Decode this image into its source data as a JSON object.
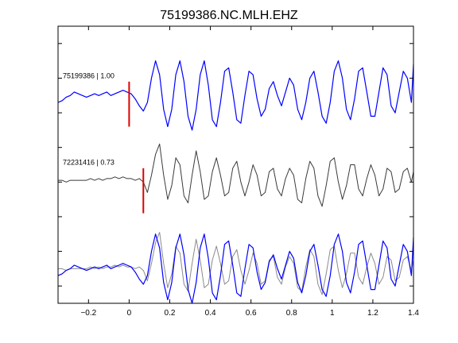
{
  "chart_data": {
    "type": "line",
    "title": "75199386.NC.MLH.EHZ",
    "xlabel": "",
    "ylabel": "",
    "xlim": [
      -0.35,
      1.4
    ],
    "ylim": [
      0,
      8
    ],
    "grid": false,
    "xticks": [
      -0.2,
      0,
      0.2,
      0.4,
      0.6,
      0.8,
      1,
      1.2,
      1.4
    ],
    "xtick_labels": [
      "−0.2",
      "0",
      "0.2",
      "0.4",
      "0.6",
      "0.8",
      "1",
      "1.2",
      "1.4"
    ],
    "yticks": [
      0.5,
      1.5,
      2.5,
      3.5,
      4.5,
      5.5,
      6.5,
      7.5
    ],
    "colors": {
      "primary": "#0000ff",
      "secondary": "#3a3a3a",
      "secondary_overlay": "#8a8a8a",
      "pick": "#e00000"
    },
    "panels": [
      {
        "label": "75199386 | 1.00",
        "offset": 6.0,
        "pick_time": 0.0,
        "pick_span": [
          5.1,
          6.4
        ],
        "traces": [
          "blue"
        ]
      },
      {
        "label": "72231416 | 0.73",
        "offset": 3.5,
        "pick_time": 0.07,
        "pick_span": [
          2.6,
          3.9
        ],
        "traces": [
          "gray"
        ]
      },
      {
        "label": "",
        "offset": 1.0,
        "traces": [
          "blue",
          "gray_overlay"
        ]
      }
    ],
    "series": [
      {
        "id": "blue",
        "time": [
          -0.35,
          -0.33,
          -0.31,
          -0.29,
          -0.27,
          -0.25,
          -0.23,
          -0.21,
          -0.19,
          -0.17,
          -0.15,
          -0.13,
          -0.11,
          -0.09,
          -0.07,
          -0.05,
          -0.03,
          -0.01,
          0.01,
          0.03,
          0.05,
          0.07,
          0.09,
          0.11,
          0.13,
          0.15,
          0.17,
          0.19,
          0.21,
          0.23,
          0.25,
          0.27,
          0.29,
          0.31,
          0.33,
          0.35,
          0.37,
          0.39,
          0.41,
          0.43,
          0.45,
          0.47,
          0.49,
          0.51,
          0.53,
          0.55,
          0.57,
          0.59,
          0.61,
          0.63,
          0.65,
          0.67,
          0.69,
          0.71,
          0.73,
          0.75,
          0.77,
          0.79,
          0.81,
          0.83,
          0.85,
          0.87,
          0.89,
          0.91,
          0.93,
          0.95,
          0.97,
          0.99,
          1.01,
          1.03,
          1.05,
          1.07,
          1.09,
          1.11,
          1.13,
          1.15,
          1.17,
          1.19,
          1.21,
          1.23,
          1.25,
          1.27,
          1.29,
          1.31,
          1.33,
          1.35,
          1.37,
          1.39,
          1.4
        ],
        "values": [
          -0.2,
          -0.15,
          -0.05,
          0.0,
          0.1,
          0.05,
          0.0,
          -0.05,
          0.0,
          0.05,
          0.0,
          0.05,
          0.1,
          0.0,
          0.05,
          0.1,
          0.15,
          0.1,
          0.05,
          -0.1,
          -0.3,
          -0.45,
          -0.2,
          0.5,
          1.0,
          0.6,
          -0.4,
          -0.9,
          -0.4,
          0.6,
          1.0,
          0.4,
          -0.6,
          -1.0,
          -0.4,
          0.6,
          1.0,
          0.3,
          -0.7,
          -0.9,
          -0.2,
          0.7,
          0.8,
          0.1,
          -0.7,
          -0.8,
          0.0,
          0.7,
          0.6,
          -0.1,
          -0.6,
          -0.4,
          0.2,
          0.4,
          0.0,
          -0.3,
          0.1,
          0.5,
          0.3,
          -0.4,
          -0.7,
          -0.2,
          0.5,
          0.7,
          0.1,
          -0.6,
          -0.8,
          -0.2,
          0.7,
          1.0,
          0.5,
          -0.4,
          -0.7,
          -0.1,
          0.7,
          0.8,
          0.1,
          -0.6,
          -0.6,
          0.1,
          0.8,
          0.6,
          -0.3,
          -0.5,
          0.1,
          0.7,
          0.5,
          -0.2,
          0.9
        ]
      },
      {
        "id": "gray",
        "time": [
          -0.35,
          -0.33,
          -0.31,
          -0.29,
          -0.27,
          -0.25,
          -0.23,
          -0.21,
          -0.19,
          -0.17,
          -0.15,
          -0.13,
          -0.11,
          -0.09,
          -0.07,
          -0.05,
          -0.03,
          -0.01,
          0.01,
          0.03,
          0.05,
          0.07,
          0.09,
          0.11,
          0.13,
          0.15,
          0.17,
          0.19,
          0.21,
          0.23,
          0.25,
          0.27,
          0.29,
          0.31,
          0.33,
          0.35,
          0.37,
          0.39,
          0.41,
          0.43,
          0.45,
          0.47,
          0.49,
          0.51,
          0.53,
          0.55,
          0.57,
          0.59,
          0.61,
          0.63,
          0.65,
          0.67,
          0.69,
          0.71,
          0.73,
          0.75,
          0.77,
          0.79,
          0.81,
          0.83,
          0.85,
          0.87,
          0.89,
          0.91,
          0.93,
          0.95,
          0.97,
          0.99,
          1.01,
          1.03,
          1.05,
          1.07,
          1.09,
          1.11,
          1.13,
          1.15,
          1.17,
          1.19,
          1.21,
          1.23,
          1.25,
          1.27,
          1.29,
          1.31,
          1.33,
          1.35,
          1.37,
          1.39,
          1.4
        ],
        "values": [
          0.05,
          0.05,
          0.0,
          0.05,
          0.05,
          0.05,
          0.05,
          0.05,
          0.1,
          0.05,
          0.1,
          0.05,
          0.1,
          0.1,
          0.15,
          0.1,
          0.15,
          0.1,
          0.1,
          0.05,
          0.1,
          0.0,
          -0.3,
          0.2,
          0.8,
          1.1,
          0.2,
          -0.5,
          -0.1,
          0.7,
          0.5,
          -0.4,
          -0.6,
          0.2,
          0.9,
          0.3,
          -0.5,
          -0.4,
          0.3,
          0.7,
          0.2,
          -0.4,
          -0.3,
          0.4,
          0.6,
          0.0,
          -0.4,
          0.0,
          0.5,
          0.2,
          -0.4,
          -0.3,
          0.3,
          0.4,
          -0.2,
          -0.4,
          0.1,
          0.4,
          0.2,
          -0.5,
          -0.6,
          0.1,
          0.6,
          0.4,
          -0.4,
          -0.7,
          -0.1,
          0.6,
          0.7,
          0.0,
          -0.5,
          -0.1,
          0.5,
          0.5,
          -0.2,
          -0.4,
          0.1,
          0.5,
          0.2,
          -0.4,
          -0.2,
          0.4,
          0.3,
          -0.3,
          -0.2,
          0.3,
          0.4,
          0.0,
          0.3
        ]
      },
      {
        "id": "gray_overlay",
        "time": [
          -0.35,
          -0.33,
          -0.31,
          -0.29,
          -0.27,
          -0.25,
          -0.23,
          -0.21,
          -0.19,
          -0.17,
          -0.15,
          -0.13,
          -0.11,
          -0.09,
          -0.07,
          -0.05,
          -0.03,
          -0.01,
          0.01,
          0.03,
          0.05,
          0.07,
          0.09,
          0.11,
          0.13,
          0.15,
          0.17,
          0.19,
          0.21,
          0.23,
          0.25,
          0.27,
          0.29,
          0.31,
          0.33,
          0.35,
          0.37,
          0.39,
          0.41,
          0.43,
          0.45,
          0.47,
          0.49,
          0.51,
          0.53,
          0.55,
          0.57,
          0.59,
          0.61,
          0.63,
          0.65,
          0.67,
          0.69,
          0.71,
          0.73,
          0.75,
          0.77,
          0.79,
          0.81,
          0.83,
          0.85,
          0.87,
          0.89,
          0.91,
          0.93,
          0.95,
          0.97,
          0.99,
          1.01,
          1.03,
          1.05,
          1.07,
          1.09,
          1.11,
          1.13,
          1.15,
          1.17,
          1.19,
          1.21,
          1.23,
          1.25,
          1.27,
          1.29,
          1.31,
          1.33,
          1.35,
          1.37,
          1.39,
          1.4
        ],
        "values": [
          0.0,
          0.0,
          -0.05,
          0.0,
          0.0,
          0.0,
          0.0,
          0.0,
          0.05,
          0.0,
          0.05,
          0.0,
          0.05,
          0.05,
          0.1,
          0.05,
          0.1,
          0.05,
          0.05,
          0.0,
          0.05,
          -0.05,
          -0.35,
          0.15,
          0.75,
          1.05,
          0.15,
          -0.55,
          -0.15,
          0.65,
          0.45,
          -0.45,
          -0.65,
          0.15,
          0.85,
          0.25,
          -0.55,
          -0.45,
          0.25,
          0.65,
          0.15,
          -0.45,
          -0.35,
          0.35,
          0.55,
          -0.05,
          -0.45,
          -0.05,
          0.45,
          0.15,
          -0.45,
          -0.35,
          0.25,
          0.35,
          -0.25,
          -0.45,
          0.05,
          0.35,
          0.15,
          -0.55,
          -0.65,
          0.05,
          0.55,
          0.35,
          -0.45,
          -0.75,
          -0.15,
          0.55,
          0.65,
          -0.05,
          -0.55,
          -0.15,
          0.45,
          0.45,
          -0.25,
          -0.45,
          0.05,
          0.45,
          0.15,
          -0.45,
          -0.25,
          0.35,
          0.25,
          -0.35,
          -0.25,
          0.25,
          0.35,
          -0.05,
          0.25
        ]
      }
    ]
  }
}
